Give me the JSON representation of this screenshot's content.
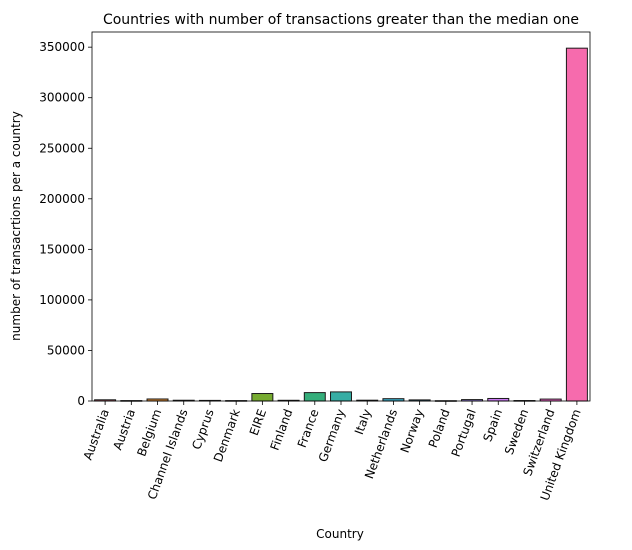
{
  "chart_data": {
    "type": "bar",
    "title": "Countries with number of transactions greater than the median one",
    "xlabel": "Country",
    "ylabel": "number of transacrtions per a country",
    "ylim": [
      0,
      365000
    ],
    "yticks": [
      0,
      50000,
      100000,
      150000,
      200000,
      250000,
      300000,
      350000
    ],
    "grid": false,
    "categories": [
      "Australia",
      "Austria",
      "Belgium",
      "Channel Islands",
      "Cyprus",
      "Denmark",
      "EIRE",
      "Finland",
      "France",
      "Germany",
      "Italy",
      "Netherlands",
      "Norway",
      "Poland",
      "Portugal",
      "Spain",
      "Sweden",
      "Switzerland",
      "United Kingdom"
    ],
    "values": [
      1200,
      400,
      2000,
      750,
      600,
      400,
      7400,
      700,
      8300,
      9000,
      800,
      2300,
      1100,
      300,
      1400,
      2500,
      450,
      1900,
      349000
    ],
    "colors": [
      "#f77189",
      "#f7754f",
      "#dc8932",
      "#c39532",
      "#ae9d31",
      "#97a431",
      "#77ab31",
      "#33b03e",
      "#35ae7b",
      "#36ada4",
      "#37abb8",
      "#38a9c5",
      "#3aa5d7",
      "#6e9bf4",
      "#a48cf4",
      "#cc79f4",
      "#f45cf2",
      "#f565cc",
      "#f66bad"
    ]
  }
}
